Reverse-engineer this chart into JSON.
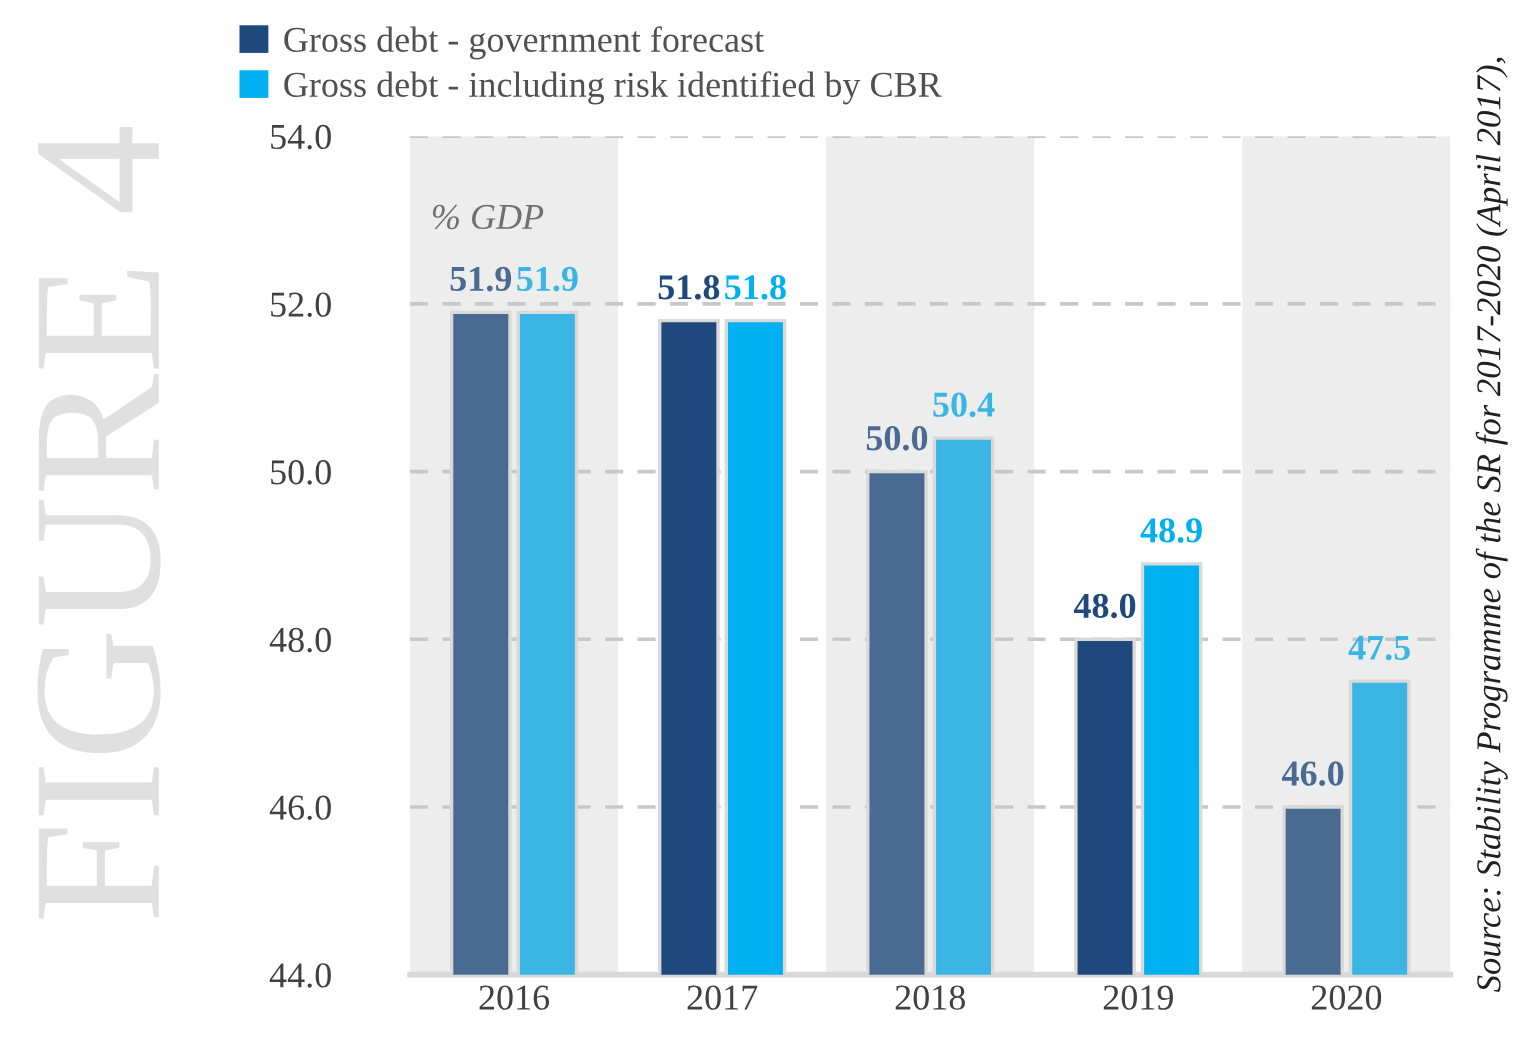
{
  "chart_data": {
    "type": "bar",
    "categories": [
      "2016",
      "2017",
      "2018",
      "2019",
      "2020"
    ],
    "series": [
      {
        "name": "Gross debt - government forecast",
        "color": "#1f497d",
        "colors": [
          "#4a6b91",
          "#1f497d",
          "#4a6b91",
          "#1f497d",
          "#4a6b91"
        ],
        "values": [
          51.9,
          51.8,
          50.0,
          48.0,
          46.0
        ],
        "value_labels": [
          "51.9",
          "51.8",
          "50.0",
          "48.0",
          "46.0"
        ]
      },
      {
        "name": "Gross debt - including risk identified by CBR",
        "color": "#00b0f0",
        "colors": [
          "#3bb5e3",
          "#00b0f0",
          "#3bb5e3",
          "#00b0f0",
          "#3bb5e3"
        ],
        "values": [
          51.9,
          51.8,
          50.4,
          48.9,
          47.5
        ],
        "value_labels": [
          "51.9",
          "51.8",
          "50.4",
          "48.9",
          "47.5"
        ]
      }
    ],
    "ylim": [
      44.0,
      54.0
    ],
    "yticks": [
      {
        "value": 44,
        "label": "44.0"
      },
      {
        "value": 46,
        "label": "46.0"
      },
      {
        "value": 48,
        "label": "48.0"
      },
      {
        "value": 50,
        "label": "50.0"
      },
      {
        "value": 52,
        "label": "52.0"
      },
      {
        "value": 54,
        "label": "54.0"
      }
    ],
    "grid": "y",
    "legend": "top left",
    "annotations": [
      "% GDP",
      "FIGURE 4",
      "Source: Stability Programme of the SR for 2017-2020 (April 2017),"
    ]
  }
}
